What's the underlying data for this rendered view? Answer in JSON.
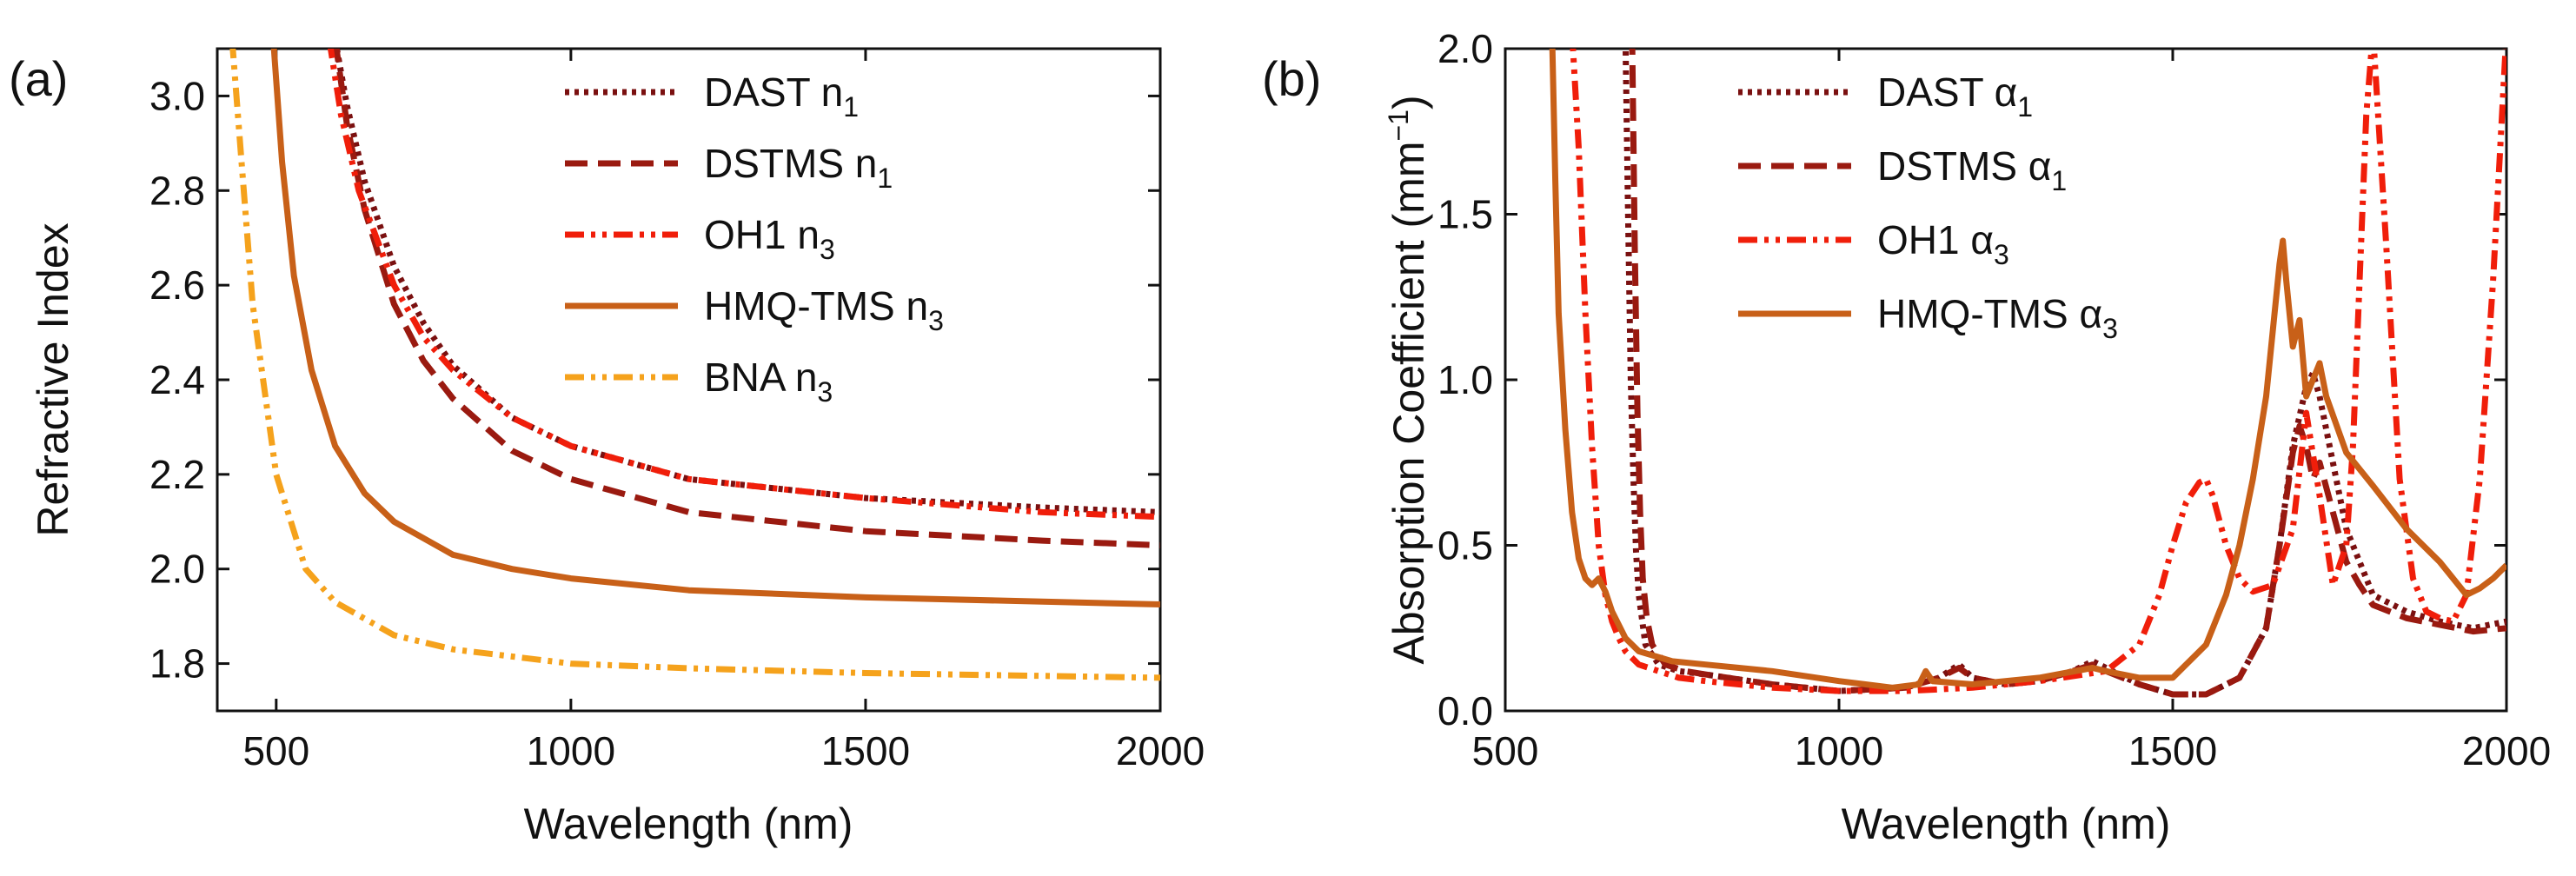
{
  "chart_data": [
    {
      "type": "line",
      "panel_label": "(a)",
      "xlabel": "Wavelength (nm)",
      "ylabel": "Refractive Index",
      "xlim": [
        400,
        2000
      ],
      "ylim": [
        1.7,
        3.1
      ],
      "xticks": [
        "500",
        "1000",
        "1500",
        "2000"
      ],
      "yticks": [
        "1.8",
        "2.0",
        "2.2",
        "2.4",
        "2.6",
        "2.8",
        "3.0"
      ],
      "legend_position": "top-right",
      "series": [
        {
          "name": "DAST",
          "symbol": "n",
          "sub": "1",
          "color": "#7a1010",
          "style": "dotted",
          "x": [
            600,
            620,
            650,
            700,
            750,
            800,
            900,
            1000,
            1200,
            1500,
            1800,
            2000
          ],
          "y": [
            3.12,
            2.98,
            2.82,
            2.64,
            2.52,
            2.43,
            2.32,
            2.26,
            2.19,
            2.15,
            2.13,
            2.12
          ]
        },
        {
          "name": "DSTMS",
          "symbol": "n",
          "sub": "1",
          "color": "#9a1a10",
          "style": "dashed",
          "x": [
            600,
            620,
            650,
            700,
            750,
            800,
            900,
            1000,
            1200,
            1500,
            1800,
            2000
          ],
          "y": [
            3.12,
            2.94,
            2.76,
            2.56,
            2.44,
            2.36,
            2.25,
            2.19,
            2.12,
            2.08,
            2.06,
            2.05
          ]
        },
        {
          "name": "OH1",
          "symbol": "n",
          "sub": "3",
          "color": "#f01e0a",
          "style": "dash-dot-dot",
          "x": [
            590,
            610,
            640,
            700,
            750,
            800,
            900,
            1000,
            1200,
            1500,
            1800,
            2000
          ],
          "y": [
            3.12,
            2.96,
            2.8,
            2.6,
            2.49,
            2.42,
            2.32,
            2.26,
            2.19,
            2.15,
            2.12,
            2.11
          ]
        },
        {
          "name": "HMQ-TMS",
          "symbol": "n",
          "sub": "3",
          "color": "#c86018",
          "style": "solid",
          "x": [
            495,
            510,
            530,
            560,
            600,
            650,
            700,
            800,
            900,
            1000,
            1200,
            1500,
            2000
          ],
          "y": [
            3.12,
            2.86,
            2.62,
            2.42,
            2.26,
            2.16,
            2.1,
            2.03,
            2.0,
            1.98,
            1.955,
            1.94,
            1.925
          ]
        },
        {
          "name": "BNA",
          "symbol": "n",
          "sub": "3",
          "color": "#f5a21c",
          "style": "dash-dot-dot",
          "x": [
            425,
            440,
            460,
            500,
            550,
            600,
            700,
            800,
            1000,
            1200,
            1500,
            2000
          ],
          "y": [
            3.12,
            2.88,
            2.56,
            2.2,
            2.0,
            1.93,
            1.86,
            1.83,
            1.8,
            1.79,
            1.78,
            1.77
          ]
        }
      ]
    },
    {
      "type": "line",
      "panel_label": "(b)",
      "xlabel": "Wavelength (nm)",
      "ylabel": "Absorption Coefficient (mm",
      "ylabel_sup": "−1",
      "ylabel_end": ")",
      "xlim": [
        500,
        2000
      ],
      "ylim": [
        0.0,
        2.0
      ],
      "xticks": [
        "500",
        "1000",
        "1500",
        "2000"
      ],
      "yticks": [
        "0.0",
        "0.5",
        "1.0",
        "1.5",
        "2.0"
      ],
      "legend_position": "top-center",
      "series": [
        {
          "name": "DAST",
          "symbol": "α",
          "sub": "1",
          "color": "#7a1010",
          "style": "dotted",
          "x": [
            680,
            684,
            688,
            692,
            696,
            700,
            710,
            730,
            760,
            800,
            900,
            1000,
            1100,
            1150,
            1180,
            1200,
            1250,
            1300,
            1350,
            1380,
            1400,
            1450,
            1500,
            1550,
            1600,
            1640,
            1660,
            1680,
            1700,
            1710,
            1720,
            1740,
            1760,
            1780,
            1800,
            1850,
            1900,
            1950,
            2000
          ],
          "y": [
            2.05,
            1.5,
            1.0,
            0.7,
            0.48,
            0.35,
            0.2,
            0.14,
            0.12,
            0.11,
            0.08,
            0.06,
            0.07,
            0.1,
            0.14,
            0.1,
            0.08,
            0.09,
            0.12,
            0.15,
            0.13,
            0.08,
            0.05,
            0.05,
            0.1,
            0.25,
            0.5,
            0.8,
            0.98,
            1.02,
            0.95,
            0.75,
            0.55,
            0.45,
            0.35,
            0.3,
            0.27,
            0.25,
            0.27
          ]
        },
        {
          "name": "DSTMS",
          "symbol": "α",
          "sub": "1",
          "color": "#9a1a10",
          "style": "dashed",
          "x": [
            690,
            694,
            698,
            702,
            706,
            712,
            720,
            740,
            770,
            800,
            900,
            1000,
            1100,
            1150,
            1180,
            1200,
            1250,
            1300,
            1350,
            1380,
            1400,
            1450,
            1500,
            1550,
            1600,
            1640,
            1660,
            1680,
            1690,
            1700,
            1710,
            1720,
            1740,
            1760,
            1780,
            1800,
            1850,
            1900,
            1950,
            2000
          ],
          "y": [
            2.05,
            1.4,
            0.9,
            0.6,
            0.4,
            0.28,
            0.2,
            0.14,
            0.12,
            0.11,
            0.08,
            0.06,
            0.07,
            0.1,
            0.13,
            0.1,
            0.08,
            0.09,
            0.12,
            0.14,
            0.12,
            0.08,
            0.05,
            0.05,
            0.1,
            0.25,
            0.5,
            0.78,
            0.86,
            0.8,
            0.7,
            0.75,
            0.6,
            0.45,
            0.38,
            0.32,
            0.28,
            0.26,
            0.24,
            0.25
          ]
        },
        {
          "name": "OH1",
          "symbol": "α",
          "sub": "3",
          "color": "#f01e0a",
          "style": "dash-dot-dot",
          "x": [
            600,
            610,
            620,
            630,
            640,
            650,
            660,
            670,
            680,
            700,
            730,
            760,
            800,
            900,
            1000,
            1100,
            1200,
            1300,
            1400,
            1450,
            1480,
            1500,
            1520,
            1540,
            1550,
            1560,
            1580,
            1600,
            1620,
            1650,
            1680,
            1700,
            1720,
            1740,
            1760,
            1770,
            1780,
            1790,
            1800,
            1820,
            1840,
            1860,
            1880,
            1900,
            1920,
            1940,
            1960,
            1980,
            2000
          ],
          "y": [
            2.05,
            1.7,
            1.2,
            0.8,
            0.5,
            0.35,
            0.27,
            0.22,
            0.18,
            0.14,
            0.12,
            0.1,
            0.09,
            0.07,
            0.06,
            0.06,
            0.07,
            0.09,
            0.12,
            0.2,
            0.35,
            0.5,
            0.63,
            0.69,
            0.7,
            0.65,
            0.5,
            0.4,
            0.36,
            0.38,
            0.55,
            0.9,
            0.65,
            0.38,
            0.5,
            0.8,
            1.3,
            1.8,
            2.05,
            1.4,
            0.7,
            0.4,
            0.3,
            0.28,
            0.27,
            0.35,
            0.7,
            1.3,
            2.05
          ]
        },
        {
          "name": "HMQ-TMS",
          "symbol": "α",
          "sub": "3",
          "color": "#c86018",
          "style": "solid",
          "x": [
            570,
            575,
            580,
            590,
            600,
            610,
            620,
            630,
            640,
            650,
            660,
            680,
            700,
            750,
            800,
            900,
            1000,
            1080,
            1120,
            1130,
            1140,
            1200,
            1300,
            1380,
            1400,
            1450,
            1500,
            1550,
            1580,
            1600,
            1620,
            1640,
            1650,
            1660,
            1665,
            1670,
            1680,
            1690,
            1700,
            1710,
            1720,
            1730,
            1760,
            1800,
            1850,
            1900,
            1940,
            1960,
            1980,
            2000
          ],
          "y": [
            2.05,
            1.6,
            1.2,
            0.85,
            0.6,
            0.46,
            0.4,
            0.38,
            0.4,
            0.36,
            0.3,
            0.22,
            0.18,
            0.15,
            0.14,
            0.12,
            0.09,
            0.07,
            0.08,
            0.12,
            0.09,
            0.08,
            0.1,
            0.13,
            0.12,
            0.1,
            0.1,
            0.2,
            0.35,
            0.5,
            0.7,
            0.95,
            1.15,
            1.35,
            1.42,
            1.3,
            1.1,
            1.18,
            0.95,
            1.0,
            1.05,
            0.95,
            0.78,
            0.68,
            0.55,
            0.45,
            0.35,
            0.37,
            0.4,
            0.44
          ]
        }
      ]
    }
  ]
}
